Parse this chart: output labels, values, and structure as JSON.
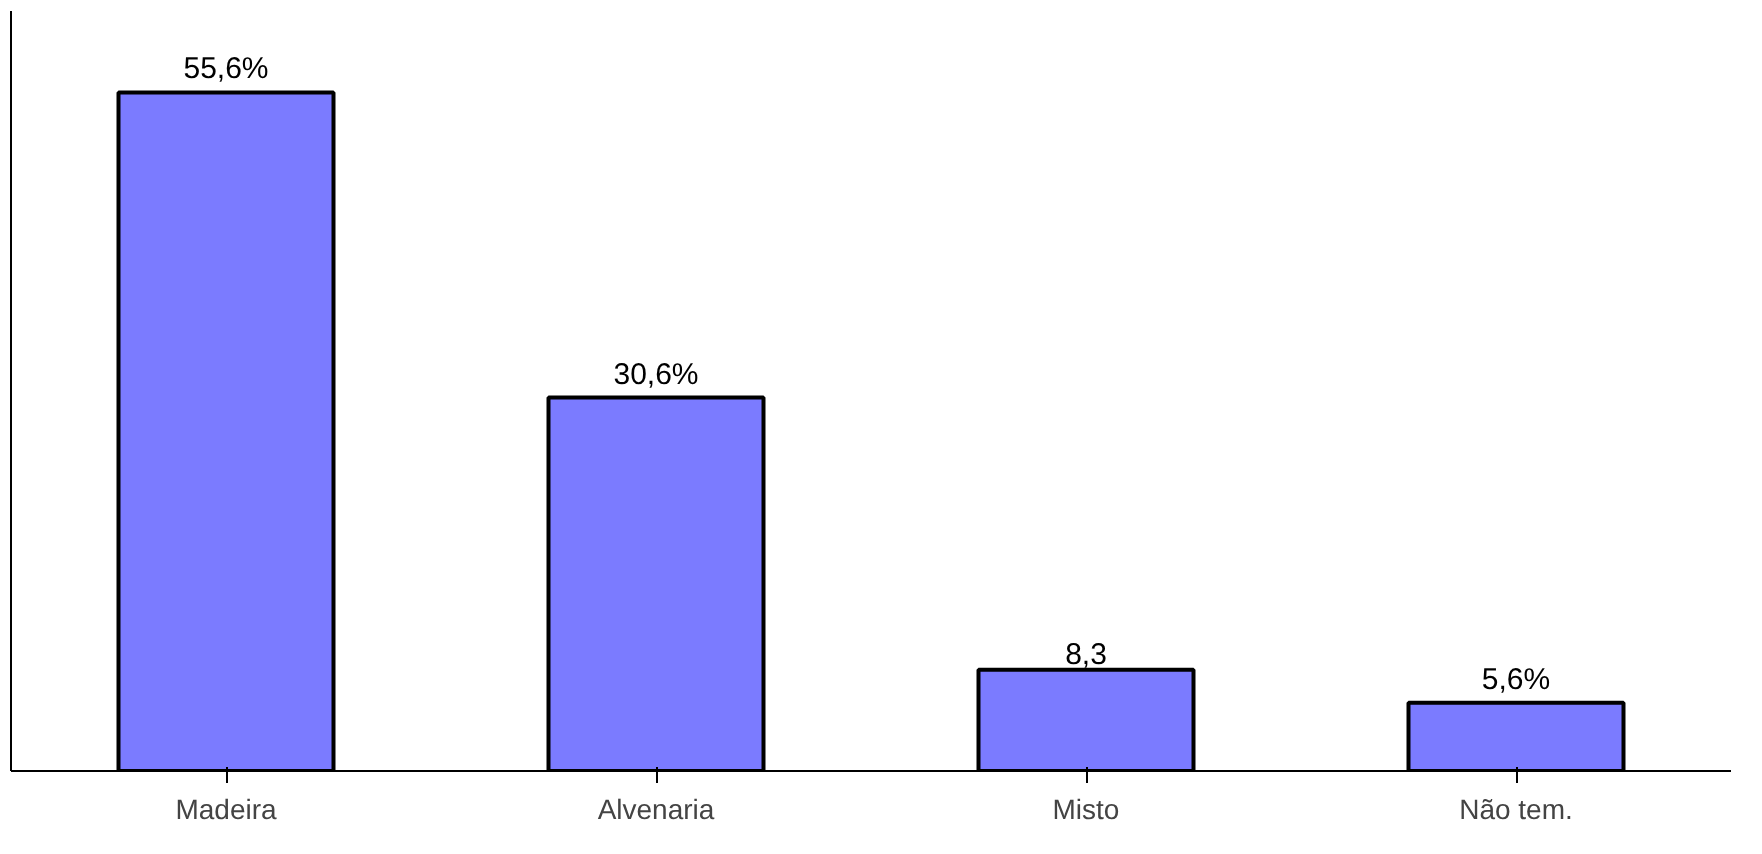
{
  "chart_data": {
    "type": "bar",
    "categories": [
      "Madeira",
      "Alvenaria",
      "Misto",
      "Não tem."
    ],
    "values": [
      55.6,
      30.6,
      8.3,
      5.6
    ],
    "value_labels": [
      "55,6%",
      "30,6%",
      "8,3",
      "5,6%"
    ],
    "color": "#7b7bff",
    "grid": false,
    "tick_labels": "x"
  }
}
